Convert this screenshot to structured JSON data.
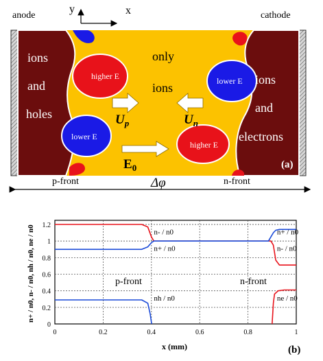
{
  "panel_a": {
    "axis_y": "y",
    "axis_x": "x",
    "anode_label": "anode",
    "cathode_label": "cathode",
    "left_region_text": [
      "ions",
      "and",
      "holes"
    ],
    "middle_text": [
      "only",
      "ions"
    ],
    "right_region_text": [
      "ions",
      "and",
      "electrons"
    ],
    "blob_higher_left": "higher E",
    "blob_lower_left": "lower E",
    "blob_lower_right": "lower E",
    "blob_higher_right": "higher E",
    "up_label": "U",
    "up_sub": "p",
    "un_label": "U",
    "un_sub": "n",
    "e0_label": "E",
    "e0_sub": "0",
    "p_front": "p-front",
    "n_front": "n-front",
    "potential": "Δφ",
    "panel_tag": "(a)",
    "colors": {
      "gold": "#fcc200",
      "maroon": "#6b0d0d",
      "red": "#e8121a",
      "blue": "#1a1ae6",
      "electrode": "#c8c8c8"
    }
  },
  "chart_data": {
    "type": "line",
    "xlabel": "x (mm)",
    "ylabel": "n+ / n0, n- / n0, nh / n0, ne / n0",
    "xlim": [
      0,
      1
    ],
    "ylim": [
      0,
      1.25
    ],
    "x_ticks": [
      "0",
      "0.2",
      "0.4",
      "0.6",
      "0.8",
      "1"
    ],
    "y_ticks": [
      "0",
      "0.2",
      "0.4",
      "0.6",
      "0.8",
      "1",
      "1.2"
    ],
    "grid": "dashed",
    "panel_tag": "(b)",
    "region_labels": [
      "p-front",
      "n-front"
    ],
    "curve_labels": [
      {
        "text": "n- / n0",
        "x": 0.41,
        "y": 1.08
      },
      {
        "text": "n+ / n0",
        "x": 0.41,
        "y": 0.88
      },
      {
        "text": "n+ / n0",
        "x": 0.92,
        "y": 1.08
      },
      {
        "text": "n- / n0",
        "x": 0.92,
        "y": 0.88
      },
      {
        "text": "nh / n0",
        "x": 0.41,
        "y": 0.28
      },
      {
        "text": "ne / n0",
        "x": 0.92,
        "y": 0.28
      }
    ],
    "series": [
      {
        "color": "#e8121a",
        "x": [
          0,
          0.36,
          0.385,
          0.4,
          0.41,
          0.895,
          0.905,
          0.915,
          0.93,
          1.0
        ],
        "y": [
          1.2,
          1.2,
          1.17,
          1.05,
          1.0,
          1.0,
          0.95,
          0.77,
          0.71,
          0.71
        ]
      },
      {
        "color": "#1a4ad8",
        "x": [
          0,
          0.36,
          0.385,
          0.4,
          0.41,
          0.885,
          0.895,
          0.905,
          0.915,
          0.93,
          1.0
        ],
        "y": [
          0.9,
          0.9,
          0.93,
          0.98,
          1.0,
          1.0,
          1.05,
          1.1,
          1.13,
          1.14,
          1.14
        ]
      },
      {
        "color": "#1a4ad8",
        "x": [
          0,
          0.36,
          0.385,
          0.395,
          0.4,
          0.401
        ],
        "y": [
          0.29,
          0.29,
          0.25,
          0.12,
          0.02,
          0.0
        ]
      },
      {
        "color": "#e8121a",
        "x": [
          0.9,
          0.905,
          0.91,
          0.925,
          0.95,
          1.0
        ],
        "y": [
          0.0,
          0.25,
          0.36,
          0.4,
          0.41,
          0.41
        ]
      }
    ]
  }
}
